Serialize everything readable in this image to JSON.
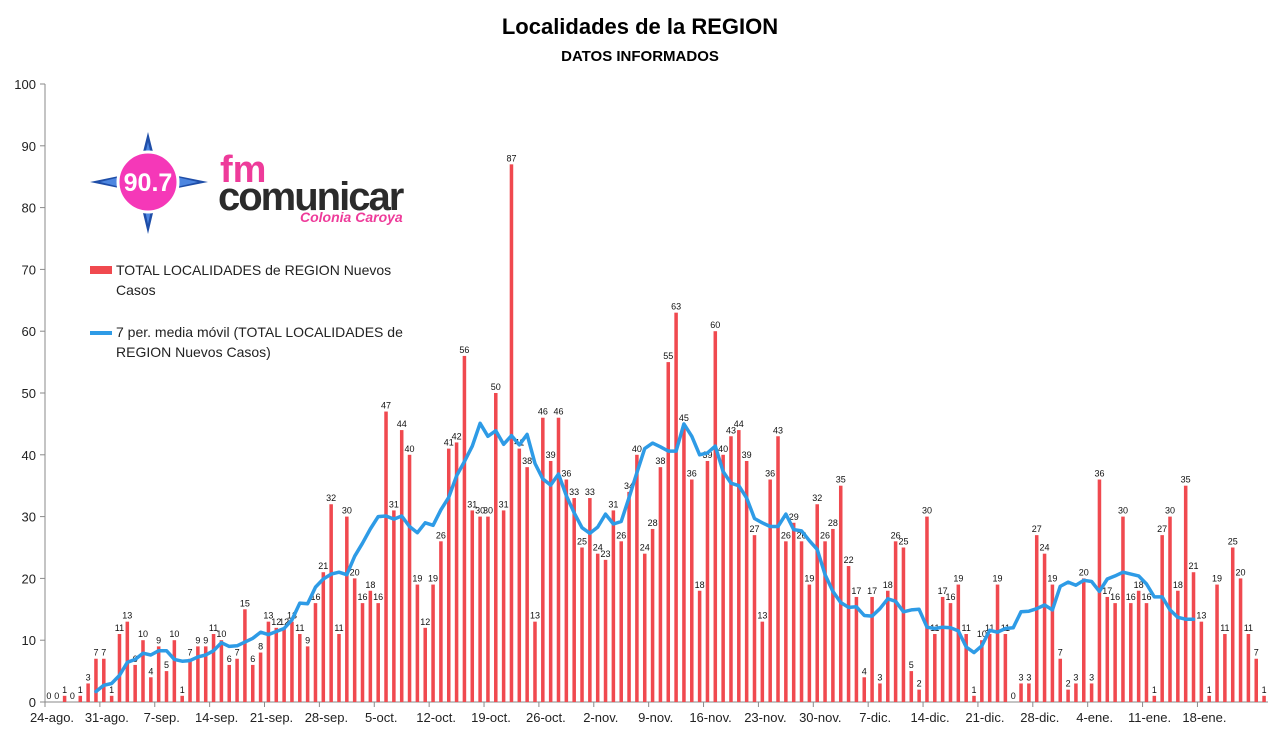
{
  "chart_data": {
    "type": "bar",
    "title": "Localidades de la REGION",
    "subtitle": "DATOS INFORMADOS",
    "ylim": [
      0,
      100
    ],
    "yticks": [
      0,
      10,
      20,
      30,
      40,
      50,
      60,
      70,
      80,
      90,
      100
    ],
    "grid": "horizontal, none",
    "legend_placement": "top-left",
    "xtick_labels": [
      "24-ago.",
      "31-ago.",
      "7-sep.",
      "14-sep.",
      "21-sep.",
      "28-sep.",
      "5-oct.",
      "12-oct.",
      "19-oct.",
      "26-oct.",
      "2-nov.",
      "9-nov.",
      "16-nov.",
      "23-nov.",
      "30-nov.",
      "7-dic.",
      "14-dic.",
      "21-dic.",
      "28-dic.",
      "4-ene.",
      "11-ene.",
      "18-ene."
    ],
    "series": [
      {
        "name": "TOTAL LOCALIDADES de REGION Nuevos Casos",
        "color": "#f0494f",
        "values": [
          0,
          0,
          1,
          0,
          1,
          3,
          7,
          7,
          1,
          11,
          13,
          6,
          10,
          4,
          9,
          5,
          10,
          1,
          7,
          9,
          9,
          11,
          10,
          6,
          7,
          15,
          6,
          8,
          13,
          12,
          12,
          13,
          11,
          9,
          16,
          21,
          32,
          11,
          30,
          20,
          16,
          18,
          16,
          47,
          31,
          44,
          40,
          19,
          12,
          19,
          26,
          41,
          42,
          56,
          31,
          30,
          30,
          50,
          31,
          87,
          41,
          38,
          13,
          46,
          39,
          46,
          36,
          33,
          25,
          33,
          24,
          23,
          31,
          26,
          34,
          40,
          24,
          28,
          38,
          55,
          63,
          45,
          36,
          18,
          39,
          60,
          40,
          43,
          44,
          39,
          27,
          13,
          36,
          43,
          26,
          29,
          26,
          19,
          32,
          26,
          28,
          35,
          22,
          17,
          4,
          17,
          3,
          18,
          26,
          25,
          5,
          2,
          30,
          11,
          17,
          16,
          19,
          11,
          1,
          10,
          11,
          19,
          11,
          0,
          3,
          3,
          27,
          24,
          19,
          7,
          2,
          3,
          20,
          3,
          36,
          17,
          16,
          30,
          16,
          18,
          16,
          1,
          27,
          30,
          18,
          35,
          21,
          13,
          1,
          19,
          11,
          25,
          20,
          11,
          7,
          1
        ]
      },
      {
        "name": "7 per. media móvil (TOTAL LOCALIDADES de REGION Nuevos Casos)",
        "color": "#2e9be6",
        "values": [
          null,
          null,
          null,
          null,
          null,
          null,
          1.7,
          2.7,
          3.0,
          4.3,
          6.4,
          6.9,
          7.9,
          7.6,
          8.3,
          8.3,
          6.9,
          6.6,
          6.7,
          7.3,
          7.6,
          8.3,
          9.6,
          9.0,
          9.1,
          9.7,
          10.3,
          11.3,
          10.9,
          11.4,
          11.9,
          13.3,
          16.0,
          15.9,
          18.6,
          19.9,
          20.7,
          21.0,
          20.6,
          23.6,
          25.7,
          28.0,
          30.0,
          30.1,
          29.6,
          30.1,
          28.4,
          27.4,
          29.0,
          28.6,
          31.1,
          33.1,
          36.6,
          38.9,
          41.4,
          45.1,
          43.0,
          43.9,
          41.7,
          43.1,
          41.6,
          43.3,
          38.6,
          36.1,
          35.1,
          36.9,
          33.4,
          30.6,
          28.2,
          27.3,
          28.3,
          30.4,
          28.8,
          29.2,
          33.1,
          37.1,
          41.0,
          41.9,
          41.3,
          40.6,
          40.6,
          45.0,
          43.0,
          40.0,
          40.3,
          41.4,
          37.3,
          35.4,
          35.0,
          33.0,
          29.7,
          29.0,
          28.4,
          28.4,
          30.4,
          27.9,
          27.7,
          26.1,
          24.7,
          20.6,
          17.9,
          16.1,
          15.3,
          15.4,
          14.0,
          13.9,
          15.1,
          16.7,
          16.3,
          14.6,
          14.9,
          15.0,
          12.1,
          11.9,
          12.1,
          12.0,
          11.5,
          8.9,
          8.0,
          9.1,
          11.6,
          11.3,
          11.9,
          12.0,
          14.6,
          14.7,
          15.1,
          15.7,
          14.9,
          18.7,
          19.4,
          18.9,
          19.7,
          19.5,
          17.9,
          19.9,
          20.4,
          21.0,
          20.7,
          20.4,
          19.1,
          17.0,
          17.0,
          14.9,
          13.7,
          13.4,
          13.4
        ]
      }
    ]
  },
  "logo": {
    "frequency": "90.7",
    "brand_line1": "fm",
    "brand_line2": "comunicar",
    "city": "Colonia Caroya"
  }
}
